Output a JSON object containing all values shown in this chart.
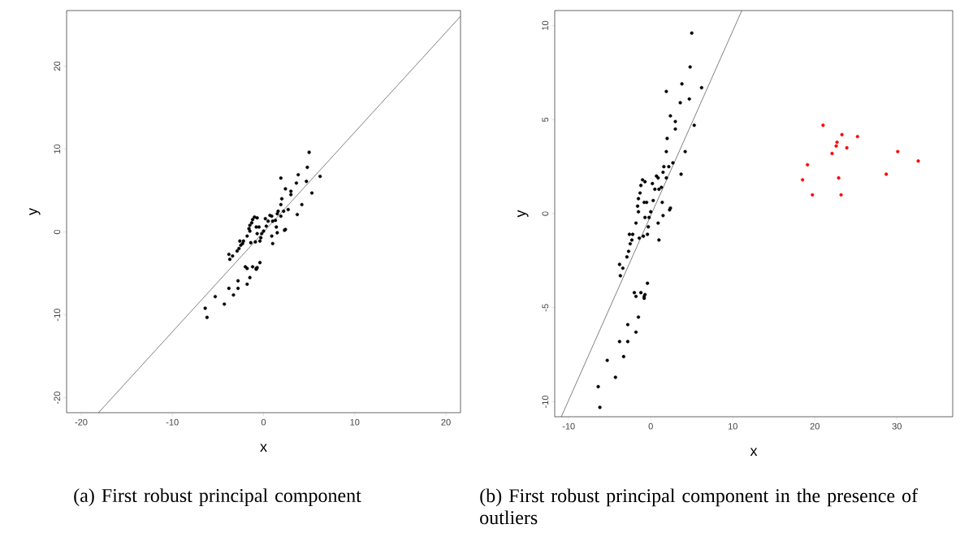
{
  "chart_data": [
    {
      "type": "scatter",
      "xlabel": "x",
      "ylabel": "y",
      "xlim": [
        -21.6,
        21.6
      ],
      "ylim": [
        -21.8,
        26.7
      ],
      "xticks": [
        -20,
        -10,
        0,
        10,
        20
      ],
      "yticks": [
        -20,
        -10,
        0,
        10,
        20
      ],
      "annotations": [
        "(a) First robust principal component"
      ],
      "series": [
        {
          "color": "#000000",
          "marker": "circle",
          "x": [
            5.0,
            4.8,
            3.8,
            1.9,
            6.2,
            4.7,
            3.6,
            2.4,
            3.0,
            3.0,
            5.3,
            2.0,
            1.9,
            4.2,
            2.7,
            1.6,
            2.2,
            3.7,
            1.5,
            0.7,
            0.9,
            1.9,
            -1.0,
            -0.7,
            0.2,
            -1.2,
            0.5,
            1.0,
            1.3,
            -1.3,
            -1.5,
            -0.8,
            -0.5,
            0.3,
            1.4,
            -1.6,
            -1.5,
            0.0,
            2.3,
            2.4,
            -0.7,
            -0.2,
            1.5,
            -1.8,
            0.9,
            -0.3,
            -2.2,
            -2.6,
            -2.3,
            -1.4,
            -0.9,
            -0.4,
            1.0,
            -2.5,
            -2.7,
            -2.9,
            -3.4,
            -3.8,
            -3.7,
            -0.4,
            -2.0,
            -1.8,
            -1.2,
            -0.8,
            -0.7,
            -0.8,
            -1.5,
            -2.8,
            -3.8,
            -2.8,
            -1.8,
            -3.3,
            -5.3,
            -4.3,
            -6.4,
            -6.2
          ],
          "values": [
            9.6,
            7.8,
            6.9,
            6.5,
            6.7,
            6.1,
            5.9,
            5.2,
            4.9,
            4.5,
            4.7,
            4.0,
            3.3,
            3.3,
            2.7,
            2.5,
            2.5,
            2.1,
            2.2,
            2.0,
            1.9,
            1.9,
            1.8,
            1.7,
            1.6,
            1.5,
            1.3,
            1.3,
            1.4,
            1.1,
            0.8,
            0.6,
            0.6,
            0.7,
            0.6,
            0.4,
            0.1,
            0.1,
            0.2,
            0.3,
            -0.2,
            -0.2,
            -0.1,
            -0.5,
            -0.5,
            -0.7,
            -1.1,
            -1.1,
            -1.4,
            -1.3,
            -1.2,
            -1.1,
            -1.4,
            -1.6,
            -2.0,
            -2.3,
            -2.9,
            -2.7,
            -3.3,
            -3.7,
            -4.2,
            -4.4,
            -4.2,
            -4.4,
            -4.3,
            -4.5,
            -5.5,
            -5.9,
            -6.8,
            -6.8,
            -6.3,
            -7.6,
            -7.8,
            -8.7,
            -9.2,
            -10.3
          ]
        },
        {
          "type": "line",
          "color": "#000000",
          "marker": "none",
          "x": [
            -18.1,
            21.6
          ],
          "values": [
            -21.8,
            26.0
          ]
        }
      ]
    },
    {
      "type": "scatter",
      "xlabel": "x",
      "ylabel": "y",
      "xlim": [
        -11.7,
        36.8
      ],
      "ylim": [
        -10.8,
        10.8
      ],
      "xticks": [
        -10,
        0,
        10,
        20,
        30
      ],
      "yticks": [
        -10,
        -5,
        0,
        5,
        10
      ],
      "annotations": [
        "(b) First robust principal component in the presence of outliers"
      ],
      "series": [
        {
          "color": "#000000",
          "marker": "circle",
          "x": [
            5.0,
            4.8,
            3.8,
            1.9,
            6.2,
            4.7,
            3.6,
            2.4,
            3.0,
            3.0,
            5.3,
            2.0,
            1.9,
            4.2,
            2.7,
            1.6,
            2.2,
            3.7,
            1.5,
            0.7,
            0.9,
            1.9,
            -1.0,
            -0.7,
            0.2,
            -1.2,
            0.5,
            1.0,
            1.3,
            -1.3,
            -1.5,
            -0.8,
            -0.5,
            0.3,
            1.4,
            -1.6,
            -1.5,
            0.0,
            2.3,
            2.4,
            -0.7,
            -0.2,
            1.5,
            -1.8,
            0.9,
            -0.3,
            -2.2,
            -2.6,
            -2.3,
            -1.4,
            -0.9,
            -0.4,
            1.0,
            -2.5,
            -2.7,
            -2.9,
            -3.4,
            -3.8,
            -3.7,
            -0.4,
            -2.0,
            -1.8,
            -1.2,
            -0.8,
            -0.7,
            -0.8,
            -1.5,
            -2.8,
            -3.8,
            -2.8,
            -1.8,
            -3.3,
            -5.3,
            -4.3,
            -6.4,
            -6.2
          ],
          "values": [
            9.6,
            7.8,
            6.9,
            6.5,
            6.7,
            6.1,
            5.9,
            5.2,
            4.9,
            4.5,
            4.7,
            4.0,
            3.3,
            3.3,
            2.7,
            2.5,
            2.5,
            2.1,
            2.2,
            2.0,
            1.9,
            1.9,
            1.8,
            1.7,
            1.6,
            1.5,
            1.3,
            1.3,
            1.4,
            1.1,
            0.8,
            0.6,
            0.6,
            0.7,
            0.6,
            0.4,
            0.1,
            0.1,
            0.2,
            0.3,
            -0.2,
            -0.2,
            -0.1,
            -0.5,
            -0.5,
            -0.7,
            -1.1,
            -1.1,
            -1.4,
            -1.3,
            -1.2,
            -1.1,
            -1.4,
            -1.6,
            -2.0,
            -2.3,
            -2.9,
            -2.7,
            -3.3,
            -3.7,
            -4.2,
            -4.4,
            -4.2,
            -4.4,
            -4.3,
            -4.5,
            -5.5,
            -5.9,
            -6.8,
            -6.8,
            -6.3,
            -7.6,
            -7.8,
            -8.7,
            -9.2,
            -10.3
          ]
        },
        {
          "color": "#ff0000",
          "marker": "circle",
          "x": [
            21.0,
            23.3,
            25.2,
            22.7,
            22.6,
            23.9,
            22.1,
            30.1,
            32.6,
            19.1,
            28.7,
            22.9,
            18.5,
            19.7,
            23.2
          ],
          "values": [
            4.7,
            4.2,
            4.1,
            3.8,
            3.6,
            3.5,
            3.2,
            3.3,
            2.8,
            2.6,
            2.1,
            1.9,
            1.8,
            1.0,
            1.0
          ]
        },
        {
          "type": "line",
          "color": "#000000",
          "marker": "none",
          "x": [
            -10.9,
            11.1
          ],
          "values": [
            -10.8,
            10.8
          ]
        }
      ]
    }
  ]
}
